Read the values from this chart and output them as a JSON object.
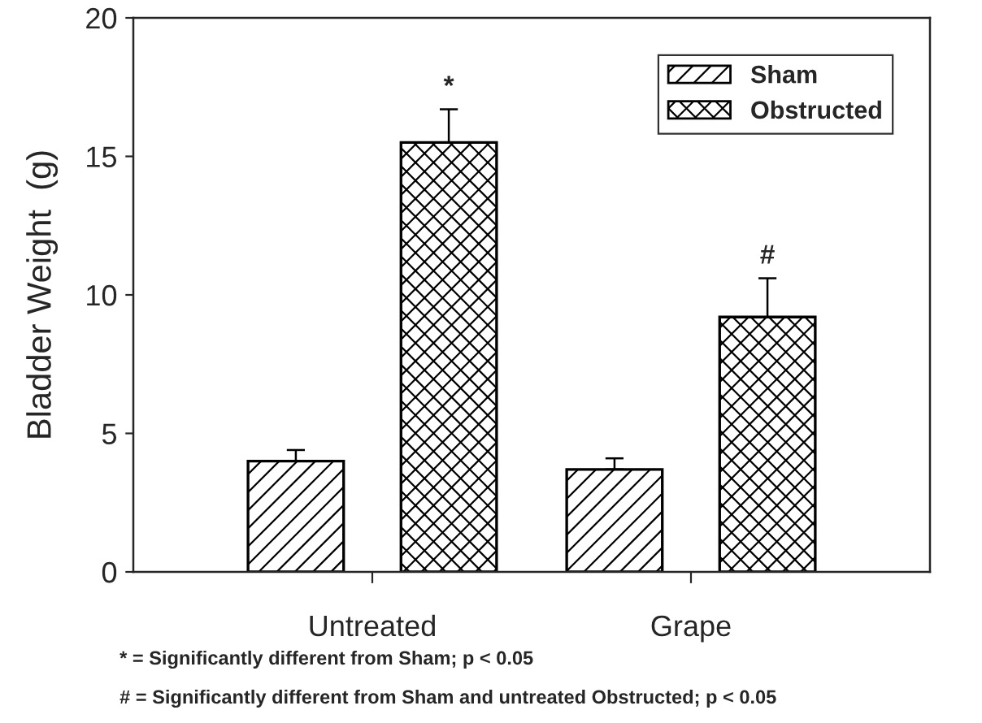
{
  "chart_data": {
    "type": "bar",
    "ylabel": "Bladder Weight  (g)",
    "categories": [
      "Untreated",
      "Grape"
    ],
    "series": [
      {
        "name": "Sham",
        "color": "#000000",
        "values": [
          4.0,
          3.7
        ],
        "errors": [
          0.4,
          0.4
        ]
      },
      {
        "name": "Obstructed",
        "color": "#000000",
        "values": [
          15.5,
          9.2
        ],
        "errors": [
          1.2,
          1.4
        ]
      }
    ],
    "ylim": [
      0,
      20
    ],
    "yticks": [
      0,
      5,
      10,
      15,
      20
    ],
    "grid": false,
    "legend": "top right",
    "annotations": [
      "*",
      "#",
      "* = Significantly different from Sham; p < 0.05",
      "# = Significantly different from Sham and untreated Obstructed; p < 0.05"
    ]
  }
}
